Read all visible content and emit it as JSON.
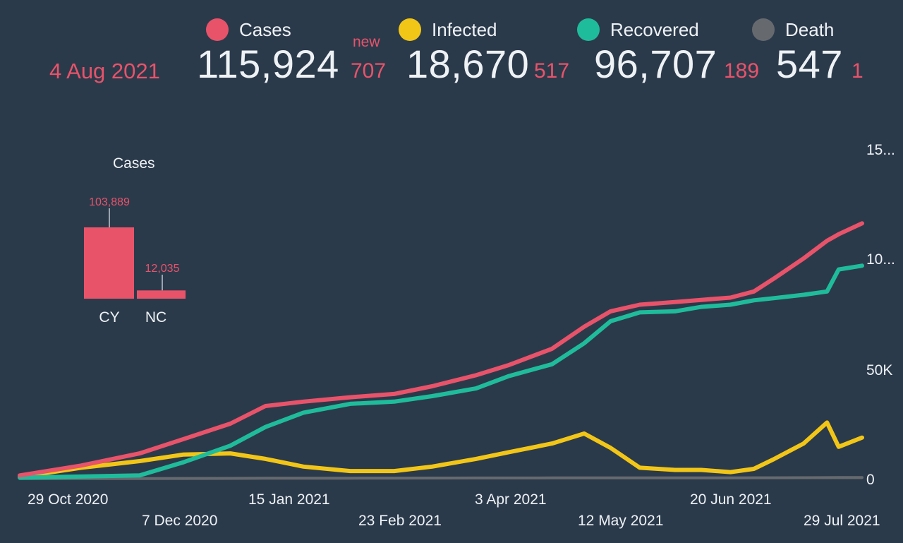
{
  "header": {
    "date": "4 Aug 2021",
    "new_label": "new",
    "stats": [
      {
        "label": "Cases",
        "color": "#e8536a",
        "value": "115,924",
        "new": "707"
      },
      {
        "label": "Infected",
        "color": "#f2c617",
        "value": "18,670",
        "new": "517"
      },
      {
        "label": "Recovered",
        "color": "#1fbc9c",
        "value": "96,707",
        "new": "189"
      },
      {
        "label": "Death",
        "color": "#666a6e",
        "value": "547",
        "new": "1"
      }
    ]
  },
  "mini_chart": {
    "title": "Cases",
    "categories": [
      "CY",
      "NC"
    ],
    "values": [
      103889,
      12035
    ],
    "value_labels": [
      "103,889",
      "12,035"
    ],
    "color": "#e8536a"
  },
  "chart_data": {
    "type": "line",
    "x_tick_labels": [
      "29 Oct 2020",
      "7 Dec 2020",
      "15 Jan 2021",
      "23 Feb 2021",
      "3 Apr 2021",
      "12 May 2021",
      "20 Jun 2021",
      "29 Jul 2021"
    ],
    "y_tick_labels": [
      "0",
      "50K",
      "10...",
      "15..."
    ],
    "ylim": [
      0,
      150000
    ],
    "x": [
      "2020-10-20",
      "2020-11-10",
      "2020-11-30",
      "2020-12-15",
      "2020-12-31",
      "2021-01-12",
      "2021-01-25",
      "2021-02-10",
      "2021-02-25",
      "2021-03-10",
      "2021-03-25",
      "2021-04-05",
      "2021-04-20",
      "2021-05-01",
      "2021-05-10",
      "2021-05-20",
      "2021-06-01",
      "2021-06-10",
      "2021-06-20",
      "2021-06-28",
      "2021-07-05",
      "2021-07-15",
      "2021-07-23",
      "2021-07-27",
      "2021-08-04"
    ],
    "series": [
      {
        "name": "Cases",
        "color": "#e8536a",
        "values": [
          1500,
          6000,
          11500,
          18000,
          25000,
          33000,
          35000,
          37000,
          38500,
          42000,
          47000,
          51500,
          59000,
          69000,
          76000,
          79000,
          80200,
          81200,
          82200,
          85000,
          91000,
          100000,
          108000,
          111000,
          115924
        ]
      },
      {
        "name": "Recovered",
        "color": "#1fbc9c",
        "values": [
          500,
          1000,
          1500,
          7500,
          15000,
          23500,
          30000,
          34000,
          35000,
          37500,
          41000,
          46500,
          52000,
          61500,
          71500,
          75500,
          76000,
          78000,
          79000,
          81000,
          82000,
          83500,
          85000,
          95000,
          96707
        ]
      },
      {
        "name": "Infected",
        "color": "#f2c617",
        "values": [
          800,
          5000,
          8000,
          11000,
          11500,
          9000,
          5500,
          3500,
          3500,
          5500,
          9000,
          12000,
          16000,
          20500,
          14000,
          5000,
          4000,
          4000,
          3000,
          4500,
          9000,
          16000,
          25500,
          14500,
          18670
        ]
      },
      {
        "name": "Death",
        "color": "#666a6e",
        "values": [
          20,
          60,
          100,
          130,
          170,
          210,
          240,
          270,
          300,
          320,
          340,
          350,
          370,
          380,
          390,
          400,
          410,
          420,
          430,
          440,
          460,
          490,
          520,
          535,
          547
        ]
      }
    ]
  }
}
